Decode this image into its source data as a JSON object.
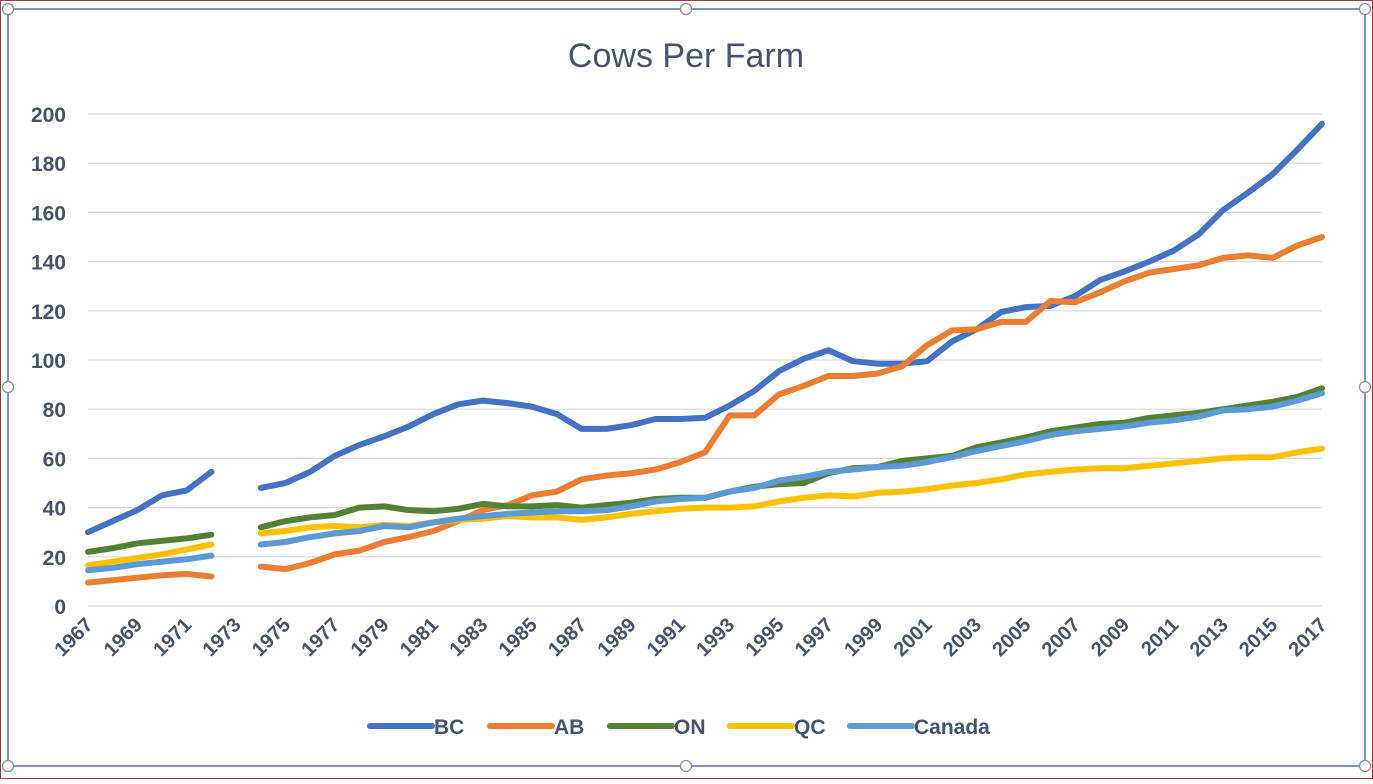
{
  "chart_data": {
    "type": "line",
    "title": "Cows Per Farm",
    "xlabel": "",
    "ylabel": "",
    "ylim": [
      0,
      200
    ],
    "yticks": [
      0,
      20,
      40,
      60,
      80,
      100,
      120,
      140,
      160,
      180,
      200
    ],
    "xticks": [
      1967,
      1969,
      1971,
      1973,
      1975,
      1977,
      1979,
      1981,
      1983,
      1985,
      1987,
      1989,
      1991,
      1993,
      1995,
      1997,
      1999,
      2001,
      2003,
      2005,
      2007,
      2009,
      2011,
      2013,
      2015,
      2017
    ],
    "x": [
      1967,
      1968,
      1969,
      1970,
      1971,
      1972,
      1973,
      1974,
      1975,
      1976,
      1977,
      1978,
      1979,
      1980,
      1981,
      1982,
      1983,
      1984,
      1985,
      1986,
      1987,
      1988,
      1989,
      1990,
      1991,
      1992,
      1993,
      1994,
      1995,
      1996,
      1997,
      1998,
      1999,
      2000,
      2001,
      2002,
      2003,
      2004,
      2005,
      2006,
      2007,
      2008,
      2009,
      2010,
      2011,
      2012,
      2013,
      2014,
      2015,
      2016,
      2017
    ],
    "grid": true,
    "legend_position": "bottom",
    "series": [
      {
        "name": "BC",
        "color": "#4472C4",
        "values": [
          30,
          34.5,
          39,
          45,
          47,
          54.5,
          null,
          48,
          50,
          54.5,
          61,
          65.5,
          69,
          73,
          78,
          82,
          83.5,
          82.5,
          81,
          78,
          72,
          72,
          73.5,
          76,
          76,
          76.5,
          81.5,
          87.5,
          95.5,
          100.5,
          104,
          99.5,
          98.5,
          98.5,
          99.5,
          107.5,
          112.5,
          119.5,
          121.5,
          122,
          126,
          132.5,
          136,
          140,
          144.5,
          151,
          161,
          168,
          175.5,
          185.5,
          196
        ]
      },
      {
        "name": "AB",
        "color": "#ED7D31",
        "values": [
          9.5,
          10.5,
          11.5,
          12.5,
          13,
          12,
          null,
          16,
          15,
          17.5,
          21,
          22.5,
          26,
          28,
          30.5,
          34.5,
          39,
          41,
          45,
          46.5,
          51.5,
          53,
          54,
          55.5,
          58.5,
          62.5,
          77.5,
          77.5,
          86,
          89.5,
          93.5,
          93.5,
          94.5,
          97.5,
          106,
          112,
          112.5,
          115.5,
          115.5,
          124,
          123.5,
          127.5,
          132,
          135.5,
          137,
          138.5,
          141.5,
          142.5,
          141.5,
          146.5,
          150
        ]
      },
      {
        "name": "ON",
        "color": "#548235",
        "values": [
          22,
          23.5,
          25.5,
          26.5,
          27.5,
          29,
          null,
          32,
          34.5,
          36,
          37,
          40,
          40.5,
          39,
          38.5,
          39.5,
          41.5,
          40.5,
          40.5,
          41,
          40,
          41,
          42,
          43.5,
          44,
          44,
          46.5,
          48.5,
          49.5,
          50,
          54,
          56,
          56.5,
          59,
          60,
          61,
          64.5,
          66.5,
          68.5,
          71,
          72.5,
          74,
          74.5,
          76.5,
          77.5,
          78.5,
          80,
          81.5,
          83,
          85,
          88.5
        ]
      },
      {
        "name": "QC",
        "color": "#FFC000",
        "values": [
          16.5,
          18,
          19.5,
          21,
          23,
          25,
          null,
          29.5,
          30.5,
          32,
          32.5,
          32,
          33,
          32.5,
          34,
          35,
          35.5,
          36.5,
          36,
          36,
          35,
          36,
          37.5,
          38.5,
          39.5,
          40,
          40,
          40.5,
          42.5,
          44,
          45,
          44.5,
          46,
          46.5,
          47.5,
          49,
          50,
          51.5,
          53.5,
          54.5,
          55.5,
          56,
          56,
          57,
          58,
          59,
          60,
          60.5,
          60.5,
          62.5,
          64
        ]
      },
      {
        "name": "Canada",
        "color": "#5B9BD5",
        "values": [
          14.5,
          15.5,
          17,
          18,
          19,
          20.5,
          null,
          25,
          26,
          28,
          29.5,
          30.5,
          32.5,
          32,
          34,
          35.5,
          36.5,
          37.5,
          38,
          38.5,
          38.5,
          39,
          40.5,
          42.5,
          43.5,
          44,
          46.5,
          48,
          51,
          52.5,
          54.5,
          55.5,
          56.5,
          57,
          58.5,
          60.5,
          63,
          65,
          67,
          69.5,
          71,
          72,
          73,
          74.5,
          75.5,
          77,
          79.5,
          80,
          81,
          83.5,
          86.5
        ]
      }
    ]
  }
}
